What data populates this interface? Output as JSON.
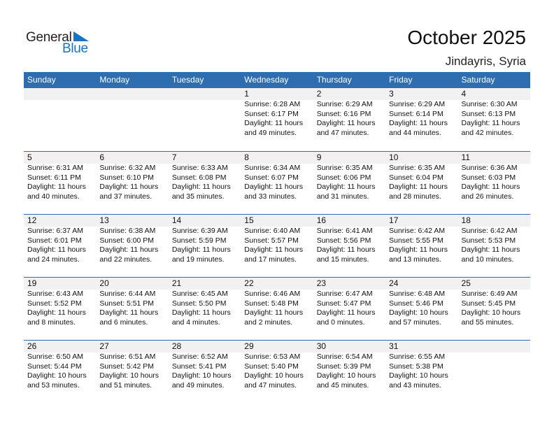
{
  "logo": {
    "text1": "General",
    "text2": "Blue"
  },
  "title": "October 2025",
  "location": "Jindayris, Syria",
  "colors": {
    "header": "#2e6db0",
    "band": "#f1f1f1",
    "logo_blue": "#1a73c0"
  },
  "weekdays": [
    "Sunday",
    "Monday",
    "Tuesday",
    "Wednesday",
    "Thursday",
    "Friday",
    "Saturday"
  ],
  "weeks": [
    [
      null,
      null,
      null,
      {
        "day": "1",
        "sunrise": "Sunrise: 6:28 AM",
        "sunset": "Sunset: 6:17 PM",
        "daylight1": "Daylight: 11 hours",
        "daylight2": "and 49 minutes."
      },
      {
        "day": "2",
        "sunrise": "Sunrise: 6:29 AM",
        "sunset": "Sunset: 6:16 PM",
        "daylight1": "Daylight: 11 hours",
        "daylight2": "and 47 minutes."
      },
      {
        "day": "3",
        "sunrise": "Sunrise: 6:29 AM",
        "sunset": "Sunset: 6:14 PM",
        "daylight1": "Daylight: 11 hours",
        "daylight2": "and 44 minutes."
      },
      {
        "day": "4",
        "sunrise": "Sunrise: 6:30 AM",
        "sunset": "Sunset: 6:13 PM",
        "daylight1": "Daylight: 11 hours",
        "daylight2": "and 42 minutes."
      }
    ],
    [
      {
        "day": "5",
        "sunrise": "Sunrise: 6:31 AM",
        "sunset": "Sunset: 6:11 PM",
        "daylight1": "Daylight: 11 hours",
        "daylight2": "and 40 minutes."
      },
      {
        "day": "6",
        "sunrise": "Sunrise: 6:32 AM",
        "sunset": "Sunset: 6:10 PM",
        "daylight1": "Daylight: 11 hours",
        "daylight2": "and 37 minutes."
      },
      {
        "day": "7",
        "sunrise": "Sunrise: 6:33 AM",
        "sunset": "Sunset: 6:08 PM",
        "daylight1": "Daylight: 11 hours",
        "daylight2": "and 35 minutes."
      },
      {
        "day": "8",
        "sunrise": "Sunrise: 6:34 AM",
        "sunset": "Sunset: 6:07 PM",
        "daylight1": "Daylight: 11 hours",
        "daylight2": "and 33 minutes."
      },
      {
        "day": "9",
        "sunrise": "Sunrise: 6:35 AM",
        "sunset": "Sunset: 6:06 PM",
        "daylight1": "Daylight: 11 hours",
        "daylight2": "and 31 minutes."
      },
      {
        "day": "10",
        "sunrise": "Sunrise: 6:35 AM",
        "sunset": "Sunset: 6:04 PM",
        "daylight1": "Daylight: 11 hours",
        "daylight2": "and 28 minutes."
      },
      {
        "day": "11",
        "sunrise": "Sunrise: 6:36 AM",
        "sunset": "Sunset: 6:03 PM",
        "daylight1": "Daylight: 11 hours",
        "daylight2": "and 26 minutes."
      }
    ],
    [
      {
        "day": "12",
        "sunrise": "Sunrise: 6:37 AM",
        "sunset": "Sunset: 6:01 PM",
        "daylight1": "Daylight: 11 hours",
        "daylight2": "and 24 minutes."
      },
      {
        "day": "13",
        "sunrise": "Sunrise: 6:38 AM",
        "sunset": "Sunset: 6:00 PM",
        "daylight1": "Daylight: 11 hours",
        "daylight2": "and 22 minutes."
      },
      {
        "day": "14",
        "sunrise": "Sunrise: 6:39 AM",
        "sunset": "Sunset: 5:59 PM",
        "daylight1": "Daylight: 11 hours",
        "daylight2": "and 19 minutes."
      },
      {
        "day": "15",
        "sunrise": "Sunrise: 6:40 AM",
        "sunset": "Sunset: 5:57 PM",
        "daylight1": "Daylight: 11 hours",
        "daylight2": "and 17 minutes."
      },
      {
        "day": "16",
        "sunrise": "Sunrise: 6:41 AM",
        "sunset": "Sunset: 5:56 PM",
        "daylight1": "Daylight: 11 hours",
        "daylight2": "and 15 minutes."
      },
      {
        "day": "17",
        "sunrise": "Sunrise: 6:42 AM",
        "sunset": "Sunset: 5:55 PM",
        "daylight1": "Daylight: 11 hours",
        "daylight2": "and 13 minutes."
      },
      {
        "day": "18",
        "sunrise": "Sunrise: 6:42 AM",
        "sunset": "Sunset: 5:53 PM",
        "daylight1": "Daylight: 11 hours",
        "daylight2": "and 10 minutes."
      }
    ],
    [
      {
        "day": "19",
        "sunrise": "Sunrise: 6:43 AM",
        "sunset": "Sunset: 5:52 PM",
        "daylight1": "Daylight: 11 hours",
        "daylight2": "and 8 minutes."
      },
      {
        "day": "20",
        "sunrise": "Sunrise: 6:44 AM",
        "sunset": "Sunset: 5:51 PM",
        "daylight1": "Daylight: 11 hours",
        "daylight2": "and 6 minutes."
      },
      {
        "day": "21",
        "sunrise": "Sunrise: 6:45 AM",
        "sunset": "Sunset: 5:50 PM",
        "daylight1": "Daylight: 11 hours",
        "daylight2": "and 4 minutes."
      },
      {
        "day": "22",
        "sunrise": "Sunrise: 6:46 AM",
        "sunset": "Sunset: 5:48 PM",
        "daylight1": "Daylight: 11 hours",
        "daylight2": "and 2 minutes."
      },
      {
        "day": "23",
        "sunrise": "Sunrise: 6:47 AM",
        "sunset": "Sunset: 5:47 PM",
        "daylight1": "Daylight: 11 hours",
        "daylight2": "and 0 minutes."
      },
      {
        "day": "24",
        "sunrise": "Sunrise: 6:48 AM",
        "sunset": "Sunset: 5:46 PM",
        "daylight1": "Daylight: 10 hours",
        "daylight2": "and 57 minutes."
      },
      {
        "day": "25",
        "sunrise": "Sunrise: 6:49 AM",
        "sunset": "Sunset: 5:45 PM",
        "daylight1": "Daylight: 10 hours",
        "daylight2": "and 55 minutes."
      }
    ],
    [
      {
        "day": "26",
        "sunrise": "Sunrise: 6:50 AM",
        "sunset": "Sunset: 5:44 PM",
        "daylight1": "Daylight: 10 hours",
        "daylight2": "and 53 minutes."
      },
      {
        "day": "27",
        "sunrise": "Sunrise: 6:51 AM",
        "sunset": "Sunset: 5:42 PM",
        "daylight1": "Daylight: 10 hours",
        "daylight2": "and 51 minutes."
      },
      {
        "day": "28",
        "sunrise": "Sunrise: 6:52 AM",
        "sunset": "Sunset: 5:41 PM",
        "daylight1": "Daylight: 10 hours",
        "daylight2": "and 49 minutes."
      },
      {
        "day": "29",
        "sunrise": "Sunrise: 6:53 AM",
        "sunset": "Sunset: 5:40 PM",
        "daylight1": "Daylight: 10 hours",
        "daylight2": "and 47 minutes."
      },
      {
        "day": "30",
        "sunrise": "Sunrise: 6:54 AM",
        "sunset": "Sunset: 5:39 PM",
        "daylight1": "Daylight: 10 hours",
        "daylight2": "and 45 minutes."
      },
      {
        "day": "31",
        "sunrise": "Sunrise: 6:55 AM",
        "sunset": "Sunset: 5:38 PM",
        "daylight1": "Daylight: 10 hours",
        "daylight2": "and 43 minutes."
      },
      null
    ]
  ]
}
